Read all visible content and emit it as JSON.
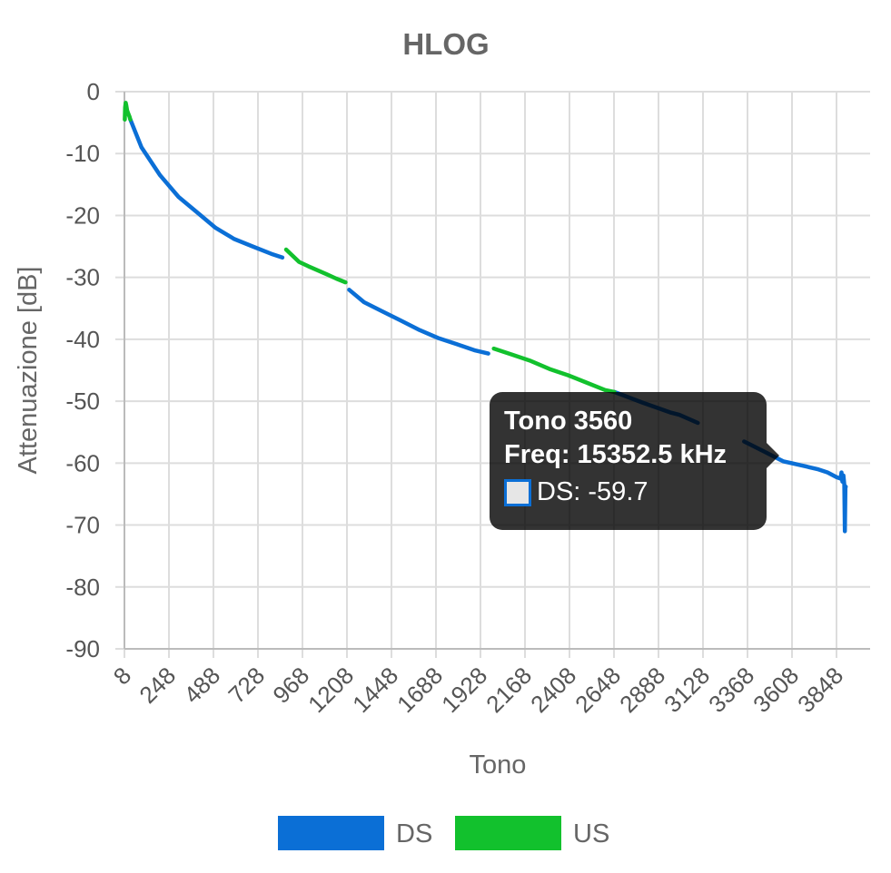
{
  "chart_data": {
    "type": "line",
    "title": "HLOG",
    "xlabel": "Tono",
    "ylabel": "Attenuazione [dB]",
    "xlim": [
      8,
      3900
    ],
    "ylim": [
      -90,
      0
    ],
    "x_ticks": [
      "8",
      "248",
      "488",
      "728",
      "968",
      "1208",
      "1448",
      "1688",
      "1928",
      "2168",
      "2408",
      "2648",
      "2888",
      "3128",
      "3368",
      "3608",
      "3848"
    ],
    "y_ticks": [
      "0",
      "-10",
      "-20",
      "-30",
      "-40",
      "-50",
      "-60",
      "-70",
      "-80",
      "-90"
    ],
    "grid": true,
    "legend_position": "bottom",
    "series": [
      {
        "name": "DS",
        "color": "#0b6fd6",
        "segments": [
          {
            "x": [
              40,
              100,
              200,
              300,
              400,
              500,
              600,
              700,
              800,
              860
            ],
            "y": [
              -4.5,
              -9,
              -13.5,
              -17,
              -19.5,
              -22,
              -23.8,
              -25,
              -26.2,
              -26.8
            ]
          },
          {
            "x": [
              1220,
              1300,
              1400,
              1500,
              1600,
              1700,
              1800,
              1900,
              1970
            ],
            "y": [
              -32,
              -34,
              -35.5,
              -37,
              -38.5,
              -39.8,
              -40.8,
              -41.8,
              -42.3
            ]
          },
          {
            "x": [
              2650,
              2800,
              2950,
              3000,
              3100
            ],
            "y": [
              -48.5,
              -50.2,
              -51.8,
              -52.2,
              -53.5
            ]
          },
          {
            "x": [
              3350,
              3450,
              3560,
              3650,
              3750,
              3800,
              3850,
              3870
            ],
            "y": [
              -56.5,
              -58,
              -59.7,
              -60.3,
              -61,
              -61.5,
              -62.3,
              -62.5
            ]
          },
          {
            "x": [
              3870,
              3875,
              3880,
              3885,
              3890,
              3893,
              3896,
              3898
            ],
            "y": [
              -62.5,
              -61.5,
              -63,
              -62,
              -63.5,
              -71,
              -64,
              -63.8
            ]
          }
        ]
      },
      {
        "name": "US",
        "color": "#12c12d",
        "segments": [
          {
            "x": [
              10,
              12,
              15,
              18,
              22,
              28,
              35,
              40
            ],
            "y": [
              -4.5,
              -2.5,
              -1.8,
              -2.2,
              -3,
              -3.5,
              -4,
              -4.5
            ]
          },
          {
            "x": [
              880,
              950,
              1000,
              1100,
              1150,
              1200
            ],
            "y": [
              -25.5,
              -27.5,
              -28.2,
              -29.5,
              -30.2,
              -30.8
            ]
          },
          {
            "x": [
              2000,
              2100,
              2200,
              2300,
              2400,
              2500,
              2600,
              2650
            ],
            "y": [
              -41.5,
              -42.5,
              -43.5,
              -44.8,
              -45.8,
              -47,
              -48.2,
              -48.5
            ]
          }
        ]
      }
    ],
    "tooltip": {
      "title": "Tono 3560",
      "freq": "Freq: 15352.5 kHz",
      "value": "DS: -59.7"
    }
  }
}
